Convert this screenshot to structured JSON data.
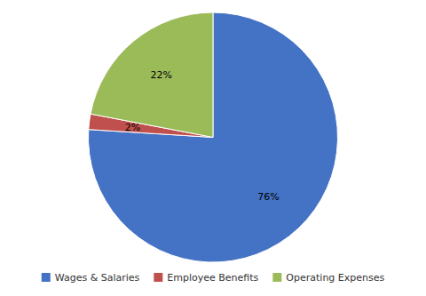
{
  "chart_data": {
    "type": "pie",
    "categories": [
      "Wages & Salaries",
      "Employee Benefits",
      "Operating Expenses"
    ],
    "values": [
      76,
      2,
      22
    ],
    "value_labels": [
      "76%",
      "2%",
      "22%"
    ],
    "colors": [
      "#4472C4",
      "#C0504D",
      "#9BBB59"
    ],
    "data_labels": true,
    "legend": "bottom"
  }
}
